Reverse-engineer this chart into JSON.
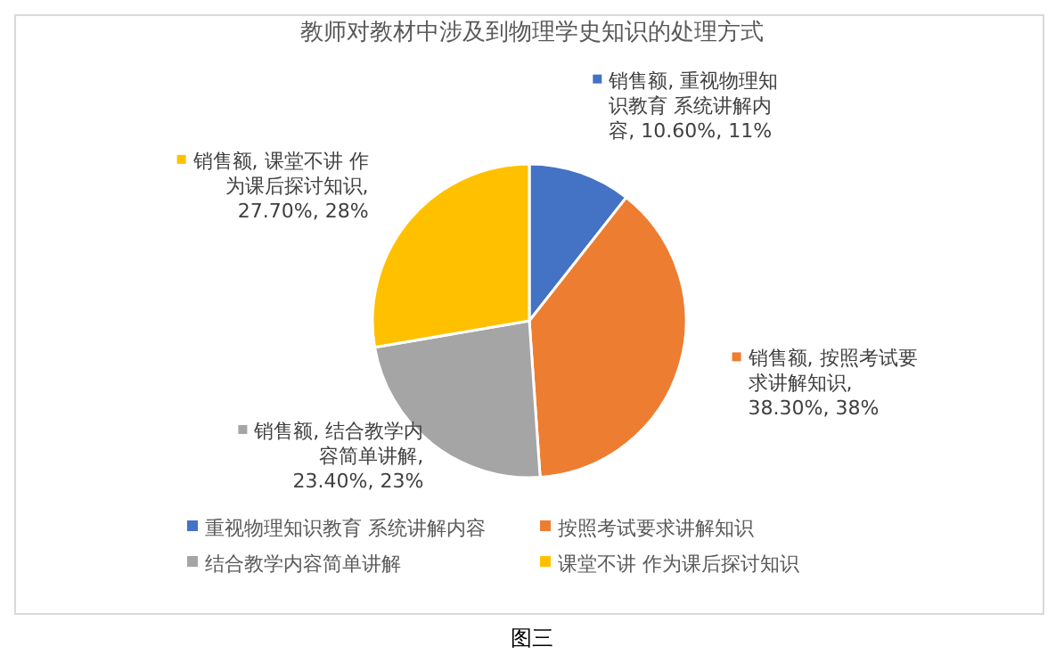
{
  "chart_data": {
    "type": "pie",
    "title": "教师对教材中涉及到物理学史知识的处理方式",
    "categories": [
      "重视物理知识教育 系统讲解内容",
      "按照考试要求讲解知识",
      "结合教学内容简单讲解",
      "课堂不讲 作为课后探讨知识"
    ],
    "values": [
      10.6,
      38.3,
      23.4,
      27.7
    ],
    "colors": [
      "#4472c4",
      "#ed7d31",
      "#a5a5a5",
      "#ffc000"
    ],
    "value_labels": [
      "销售额, 重视物理知识教育 系统讲解内容, 10.60%, 11%",
      "销售额, 按照考试要求讲解知识, 38.30%, 38%",
      "销售额, 结合教学内容简单讲解, 23.40%, 23%",
      "销售额, 课堂不讲 作为课后探讨知识, 27.70%, 28%"
    ],
    "legend": "bottom",
    "annotations": [
      "图三"
    ]
  }
}
